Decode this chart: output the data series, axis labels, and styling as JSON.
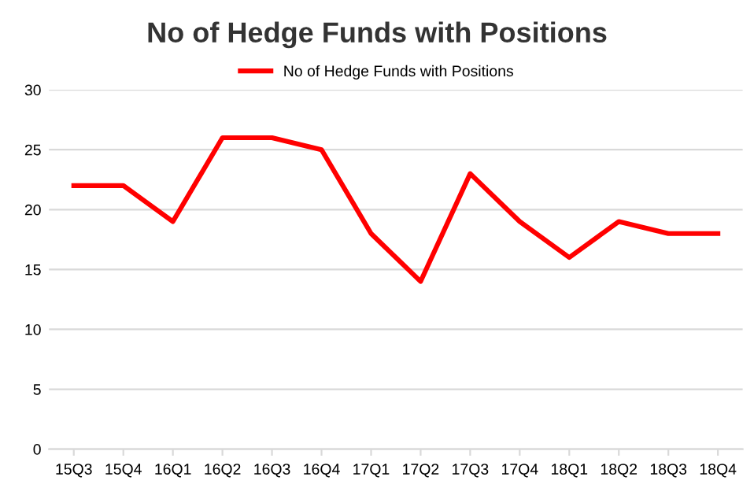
{
  "chart_data": {
    "type": "line",
    "title": "No of Hedge Funds with Positions",
    "categories": [
      "15Q3",
      "15Q4",
      "16Q1",
      "16Q2",
      "16Q3",
      "16Q4",
      "17Q1",
      "17Q2",
      "17Q3",
      "17Q4",
      "18Q1",
      "18Q2",
      "18Q3",
      "18Q4"
    ],
    "series": [
      {
        "name": "No of Hedge Funds with Positions",
        "color": "#ff0000",
        "values": [
          22,
          22,
          19,
          26,
          26,
          25,
          18,
          14,
          23,
          19,
          16,
          19,
          18,
          18
        ]
      }
    ],
    "ylim": [
      0,
      30
    ],
    "yticks": [
      0,
      5,
      10,
      15,
      20,
      25,
      30
    ],
    "grid": "y",
    "legend": "top",
    "marker": "none",
    "line_style": "solid"
  }
}
